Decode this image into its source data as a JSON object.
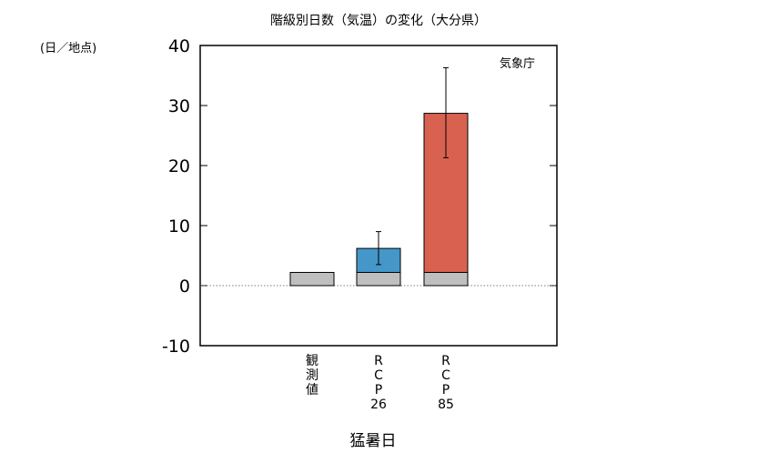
{
  "chart_data": {
    "type": "bar",
    "title": "階級別日数（気温）の変化（大分県）",
    "unit_label": "(日／地点)",
    "source_label": "気象庁",
    "xlabel": "猛暑日",
    "ylim": [
      -10,
      40
    ],
    "yticks": [
      -10,
      0,
      10,
      20,
      30,
      40
    ],
    "grid": false,
    "zero_line": "dotted",
    "categories": [
      {
        "lines": [
          "観",
          "測",
          "値"
        ]
      },
      {
        "lines": [
          "R",
          "C",
          "P",
          "26"
        ]
      },
      {
        "lines": [
          "R",
          "C",
          "P",
          "85"
        ]
      }
    ],
    "baseline": {
      "values": [
        2.2,
        2.2,
        2.2
      ],
      "color": "#bfbfbf"
    },
    "change": {
      "values": [
        null,
        6.2,
        28.7
      ],
      "colors": [
        null,
        "#4597c9",
        "#d96150"
      ],
      "error_low": [
        null,
        3.5,
        21.3
      ],
      "error_high": [
        null,
        9.0,
        36.3
      ]
    }
  }
}
